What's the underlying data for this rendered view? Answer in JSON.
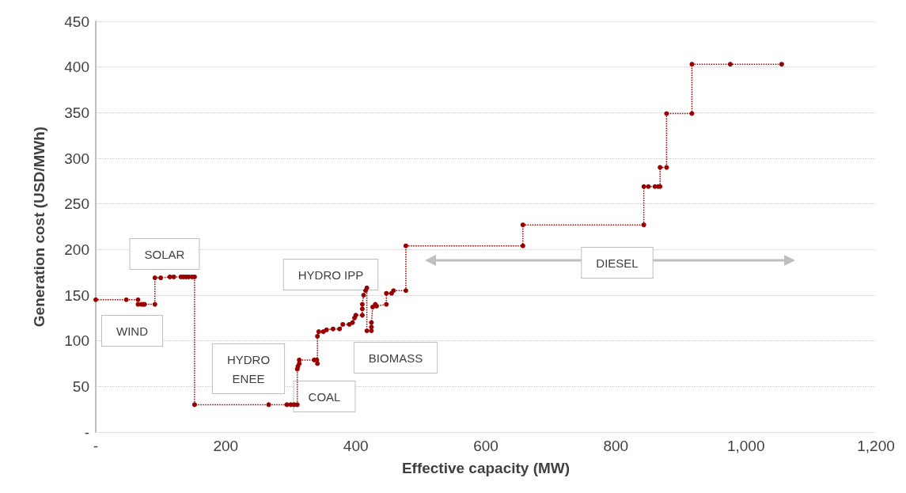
{
  "chart_data": {
    "type": "line",
    "xlabel": "Effective capacity (MW)",
    "ylabel": "Generation cost (USD/MWh)",
    "xlim": [
      0,
      1200
    ],
    "xticks": [
      {
        "value": 0,
        "label": "-"
      },
      200,
      400,
      600,
      800,
      {
        "value": 1000,
        "label": "1,000"
      },
      {
        "value": 1200,
        "label": "1,200"
      }
    ],
    "ylim": [
      0,
      450
    ],
    "yticks": [
      {
        "value": 0,
        "label": "-"
      },
      50,
      100,
      150,
      200,
      250,
      300,
      350,
      400,
      450
    ],
    "grid": "y",
    "marker": "circle",
    "line_style": "dotted",
    "series": [
      {
        "color": "#990000",
        "x": [
          0,
          47,
          65,
          65,
          70,
          73,
          75,
          91,
          91,
          100,
          114,
          120,
          131,
          135,
          139,
          143,
          148,
          152,
          152,
          266,
          294,
          300,
          305,
          310,
          310,
          311,
          313,
          313,
          336,
          340,
          341,
          341,
          343,
          350,
          355,
          365,
          375,
          380,
          390,
          395,
          398,
          400,
          410,
          410,
          410,
          412,
          415,
          417,
          417,
          424,
          424,
          424,
          426,
          430,
          432,
          447,
          447,
          455,
          458,
          477,
          477,
          657,
          657,
          843,
          843,
          850,
          860,
          865,
          868,
          868,
          878,
          878,
          917,
          917,
          976,
          1055
        ],
        "values": [
          145,
          145,
          145,
          140,
          140,
          140,
          140,
          140,
          169,
          169,
          170,
          170,
          170,
          170,
          170,
          170,
          170,
          170,
          30,
          30,
          30,
          30,
          30,
          30,
          69,
          72,
          75,
          79,
          79,
          79,
          75,
          105,
          110,
          110,
          112,
          113,
          113,
          118,
          118,
          120,
          125,
          128,
          128,
          135,
          140,
          150,
          155,
          158,
          111,
          111,
          115,
          120,
          137,
          140,
          138,
          140,
          152,
          152,
          155,
          155,
          204,
          204,
          227,
          227,
          269,
          269,
          269,
          269,
          269,
          290,
          290,
          349,
          349,
          403,
          403,
          403
        ]
      }
    ],
    "annotations": [
      "WIND",
      "SOLAR",
      "HYDRO\nENEE",
      "COAL",
      "HYDRO IPP",
      "BIOMASS",
      "DIESEL"
    ]
  }
}
